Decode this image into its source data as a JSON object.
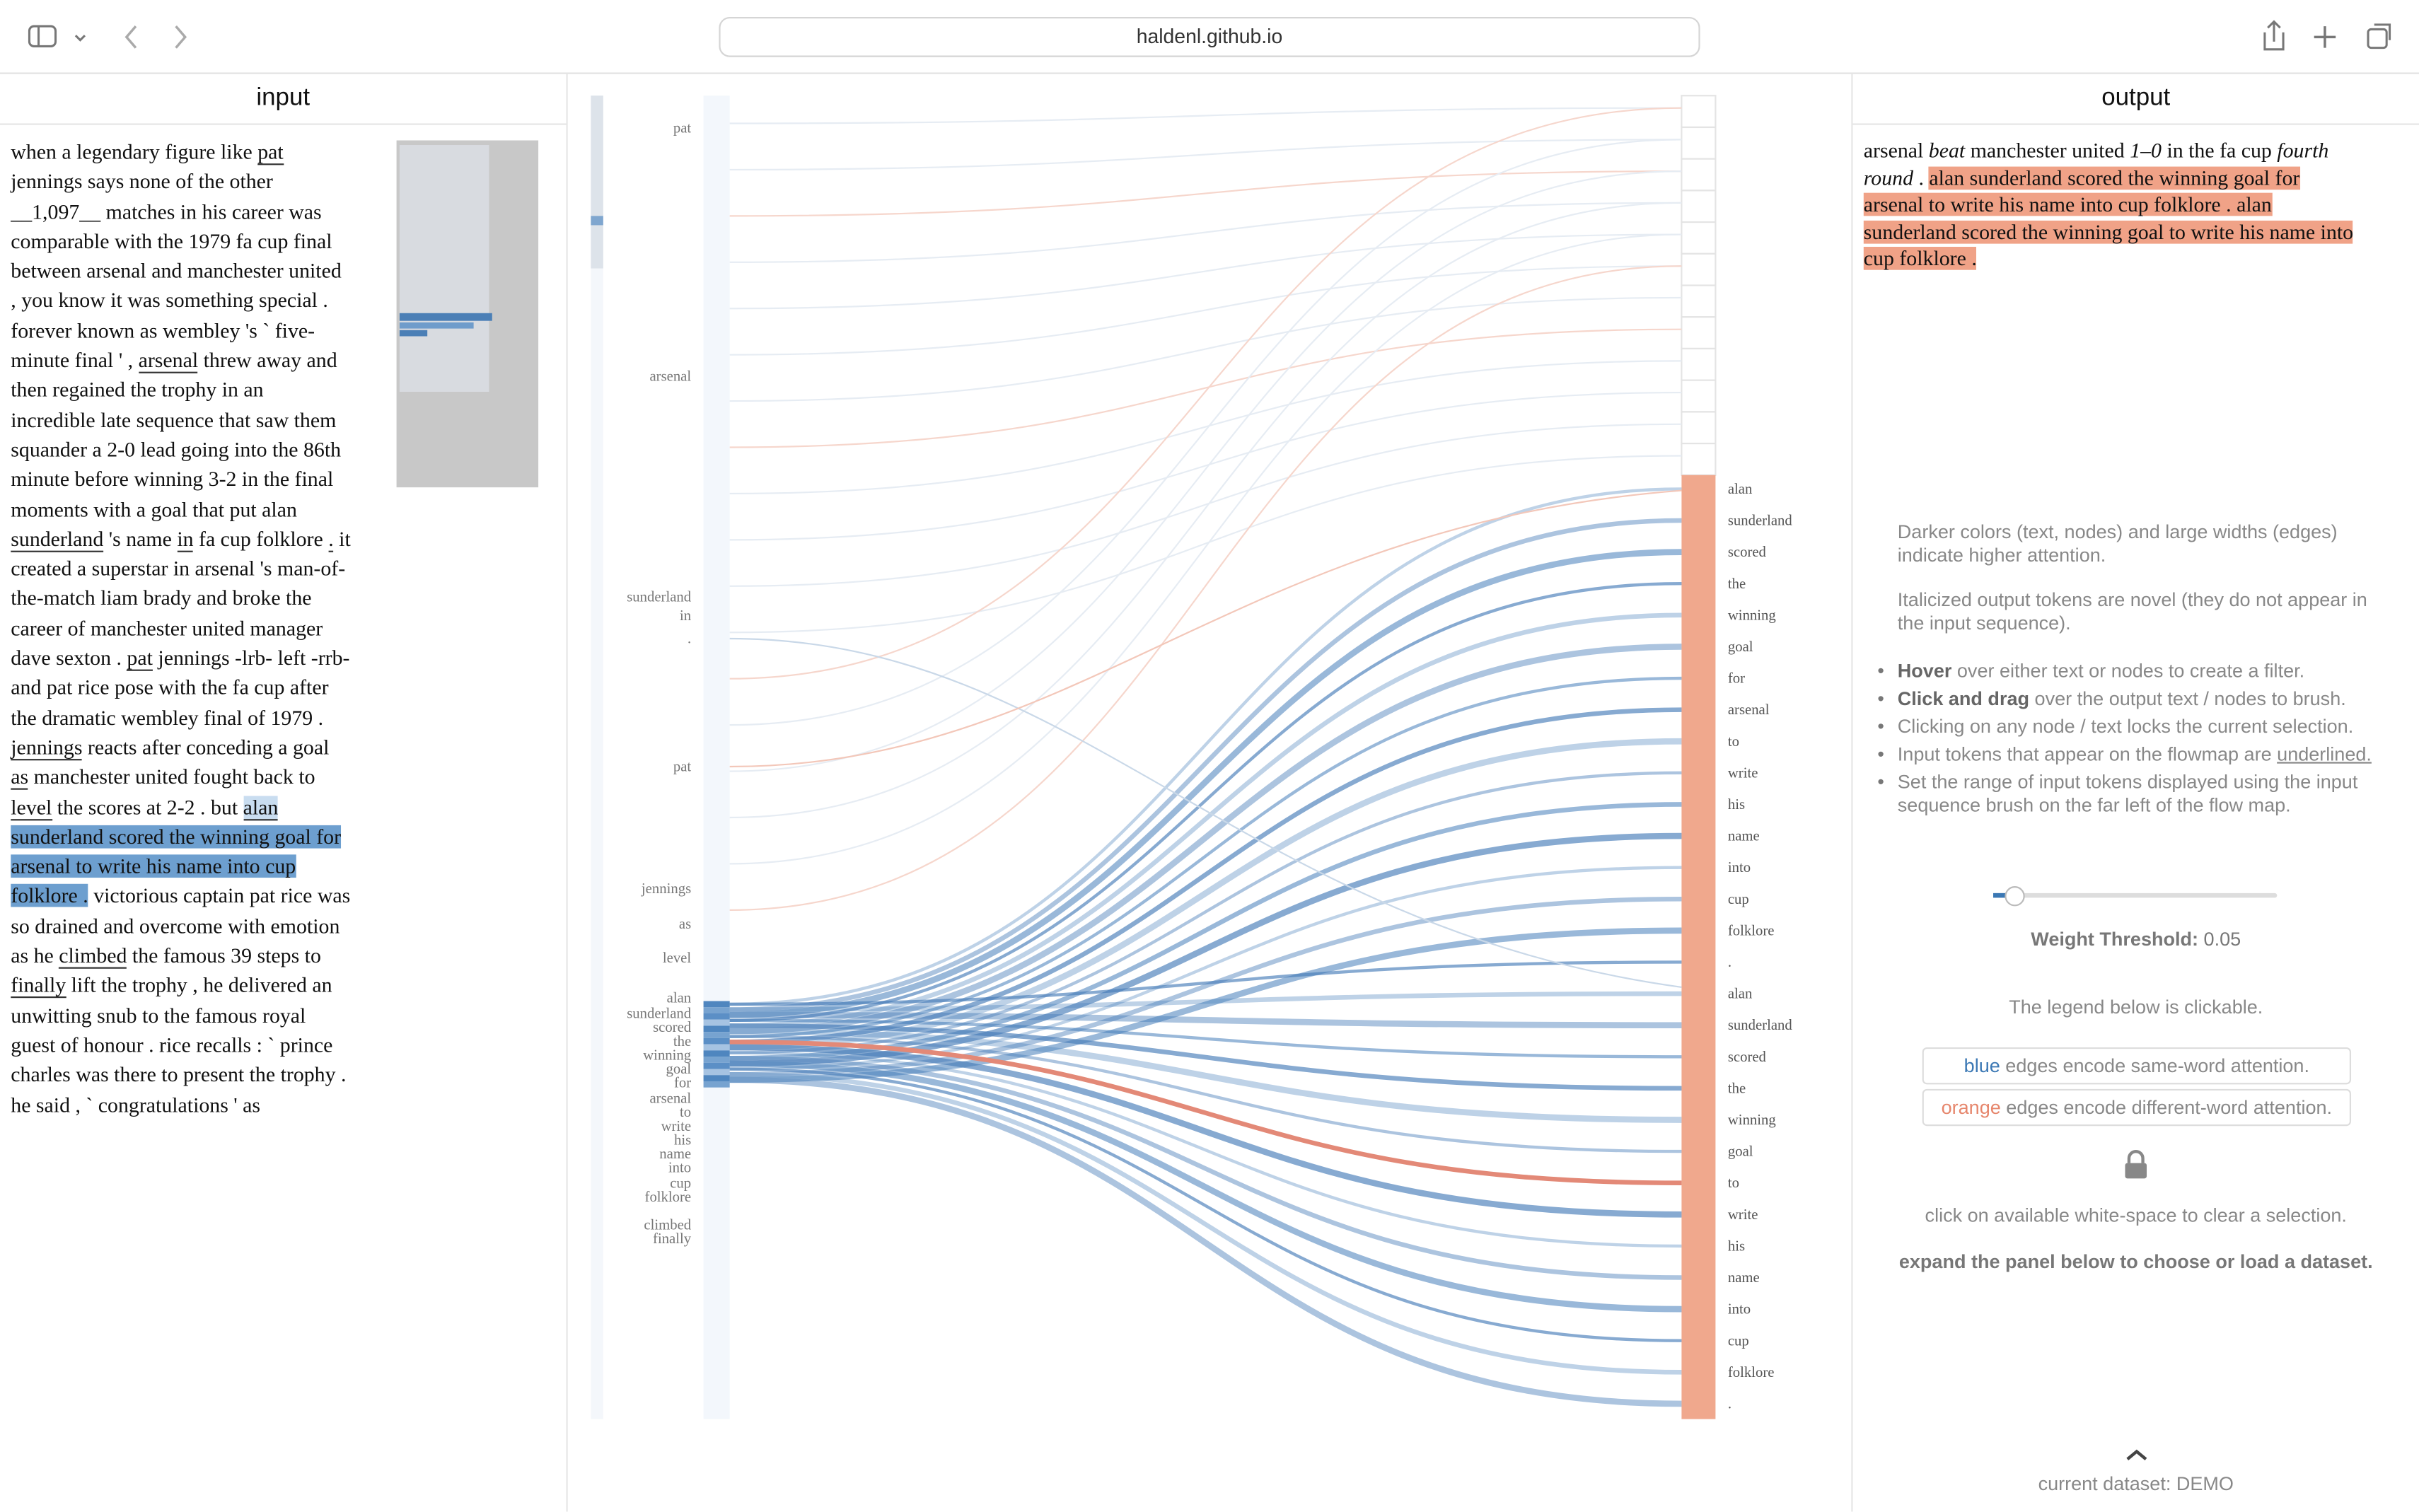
{
  "browser": {
    "url": "haldenl.github.io"
  },
  "input": {
    "title": "input",
    "lines": [
      [
        "when a legendary figure like ",
        [
          "pat",
          "u"
        ]
      ],
      [
        "jennings says none of the other"
      ],
      [
        "__1,097__ matches in his career was"
      ],
      [
        "comparable with the 1979 fa cup final"
      ],
      [
        "between arsenal and manchester united"
      ],
      [
        ", you know it was something special ."
      ],
      [
        "forever known as wembley 's ` five-"
      ],
      [
        "minute final ' , ",
        [
          "arsenal",
          "u"
        ],
        " threw away and"
      ],
      [
        "then regained the trophy in an"
      ],
      [
        "incredible late sequence that saw them"
      ],
      [
        "squander a 2-0 lead going into the 86th"
      ],
      [
        "minute before winning 3-2 in the final"
      ],
      [
        "moments with a goal that put alan"
      ],
      [
        [
          "sunderland",
          "u"
        ],
        " 's name ",
        [
          "in",
          "u"
        ],
        " fa cup folklore ",
        [
          ".",
          "u"
        ],
        " it"
      ],
      [
        "created a superstar in arsenal 's man-of-"
      ],
      [
        "the-match liam brady and broke the"
      ],
      [
        "career of manchester united manager"
      ],
      [
        "dave sexton . ",
        [
          "pat",
          "u"
        ],
        " jennings -lrb- left -rrb-"
      ],
      [
        "and pat rice pose with the fa cup after"
      ],
      [
        "the dramatic wembley final of 1979 ."
      ],
      [
        [
          "jennings",
          "u"
        ],
        " reacts after conceding a goal"
      ],
      [
        [
          "as",
          "u"
        ],
        " manchester united fought back to"
      ],
      [
        [
          "level",
          "u"
        ],
        " the scores at 2-2 . but ",
        [
          "alan",
          "ul"
        ]
      ],
      [
        [
          "sunderland scored the winning goal for",
          "h"
        ]
      ],
      [
        [
          "arsenal to write his name into cup",
          "h"
        ]
      ],
      [
        [
          "folklore .",
          "h"
        ],
        " victorious captain pat rice was"
      ],
      [
        "so drained and overcome with emotion"
      ],
      [
        "as he ",
        [
          "climbed",
          "u"
        ],
        " the famous 39 steps to"
      ],
      [
        [
          "finally",
          "u"
        ],
        " lift the trophy , he delivered an"
      ],
      [
        "unwitting snub to the famous royal"
      ],
      [
        "guest of honour . rice recalls : ` prince"
      ],
      [
        "charles was there to present the trophy ."
      ],
      [
        "he said , ` congratulations ' as"
      ]
    ]
  },
  "flowmap": {
    "input_nodes": [
      "pat",
      "arsenal",
      "sunderland",
      "in",
      ".",
      "pat",
      "jennings",
      "as",
      "level",
      "alan",
      "sunderland",
      "scored",
      "the",
      "winning",
      "goal",
      "for",
      "arsenal",
      "to",
      "write",
      "his",
      "name",
      "into",
      "cup",
      "folklore",
      "climbed",
      "finally"
    ],
    "output_nodes": [
      "alan",
      "sunderland",
      "scored",
      "the",
      "winning",
      "goal",
      "for",
      "arsenal",
      "to",
      "write",
      "his",
      "name",
      "into",
      "cup",
      "folklore",
      ".",
      "alan",
      "sunderland",
      "scored",
      "the",
      "winning",
      "goal",
      "to",
      "write",
      "his",
      "name",
      "into",
      "cup",
      "folklore",
      "."
    ]
  },
  "output": {
    "title": "output",
    "lines": [
      [
        "arsenal ",
        [
          "beat",
          "i"
        ],
        " manchester united ",
        [
          "1–0",
          "i"
        ],
        " in the fa cup ",
        [
          "fourth",
          "i"
        ]
      ],
      [
        [
          "round",
          "i"
        ],
        " . ",
        [
          "alan sunderland scored the winning goal for",
          "h"
        ]
      ],
      [
        [
          "arsenal to write his name into cup folklore . alan",
          "h"
        ]
      ],
      [
        [
          "sunderland scored the winning goal to write his name into",
          "h"
        ]
      ],
      [
        [
          "cup folklore .",
          "h"
        ]
      ]
    ]
  },
  "info": {
    "paragraphs": [
      "Darker colors (text, nodes) and large widths (edges) indicate higher attention.",
      "Italicized output tokens are novel (they do not appear in the input sequence)."
    ],
    "bullets": [
      [
        [
          "Hover",
          "b"
        ],
        " over either text or nodes to create a filter."
      ],
      [
        [
          "Click and drag",
          "b"
        ],
        " over the output text / nodes to brush."
      ],
      [
        "Clicking on any node / text locks the current selection."
      ],
      [
        "Input tokens that appear on the flowmap are ",
        [
          "underlined.",
          "n"
        ]
      ],
      [
        "Set the range of input tokens displayed using the input sequence brush on the far left of the flow map."
      ]
    ],
    "threshold_label": "Weight Threshold:",
    "threshold_value": 0.05,
    "legend_note": "The legend below is clickable.",
    "legend": [
      [
        [
          "blue",
          "c"
        ],
        " edges encode same-word attention."
      ],
      [
        [
          "orange",
          "o"
        ],
        " edges encode different-word attention."
      ]
    ],
    "clear_note": "click on available white-space to clear a selection.",
    "expand_note": "expand the panel below to choose or load a dataset.",
    "dataset": "current dataset: DEMO"
  }
}
